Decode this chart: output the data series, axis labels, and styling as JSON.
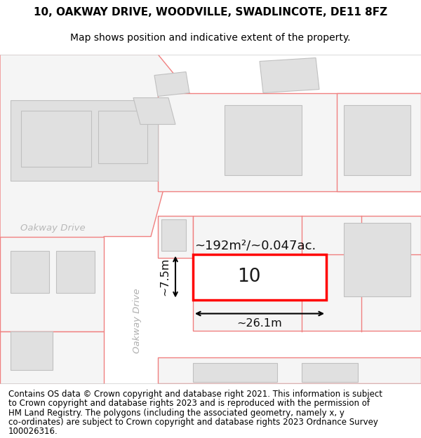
{
  "title_line1": "10, OAKWAY DRIVE, WOODVILLE, SWADLINCOTE, DE11 8FZ",
  "title_line2": "Map shows position and indicative extent of the property.",
  "footer_text": "Contains OS data © Crown copyright and database right 2021. This information is subject to Crown copyright and database rights 2023 and is reproduced with the permission of HM Land Registry. The polygons (including the associated geometry, namely x, y co-ordinates) are subject to Crown copyright and database rights 2023 Ordnance Survey 100026316.",
  "background_color": "#ffffff",
  "map_bg_color": "#f2f2f2",
  "highlight_color": "#ff0000",
  "highlight_fill": "#ffffff",
  "plot_number": "10",
  "area_label": "~192m²/~0.047ac.",
  "width_label": "~26.1m",
  "height_label": "~7.5m",
  "title_fontsize": 11,
  "subtitle_fontsize": 10,
  "footer_fontsize": 8.5,
  "road_label_color": "#aaaaaa",
  "building_fill": "#e0e0e0",
  "parcel_outline": "#f08080",
  "building_outline": "#c0c0c0"
}
